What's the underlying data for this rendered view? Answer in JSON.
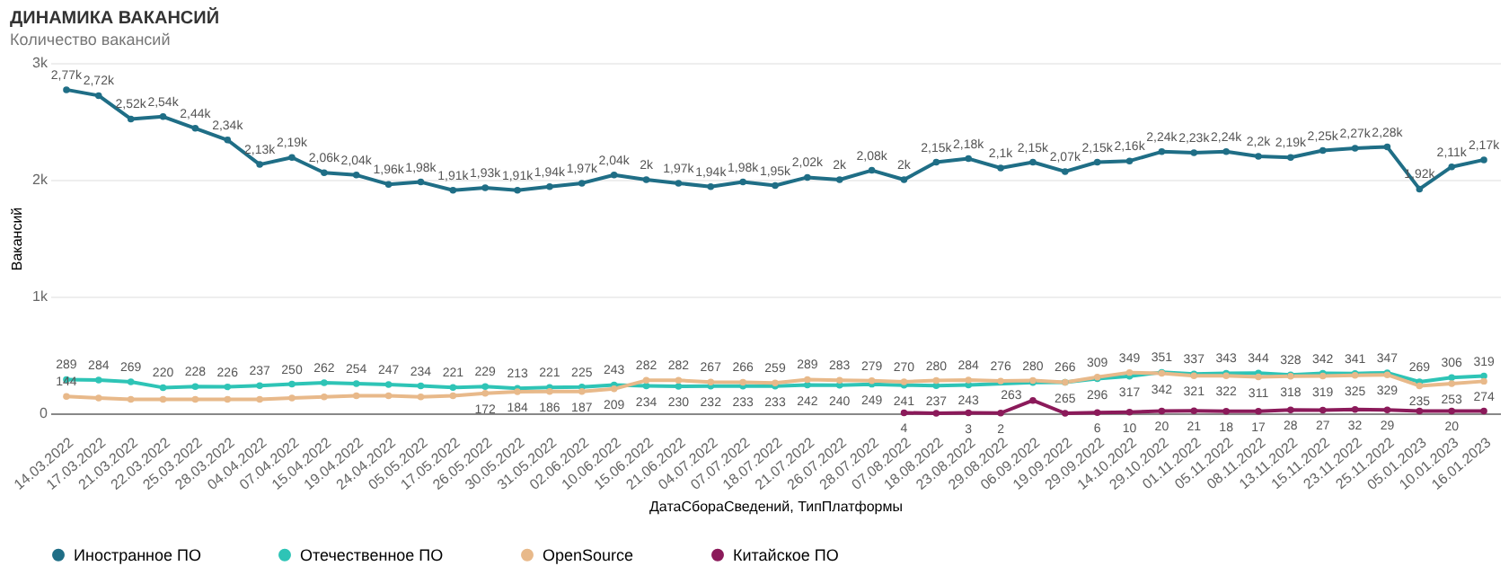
{
  "chart_data": {
    "type": "line",
    "title": "ДИНАМИКА ВАКАНСИЙ",
    "subtitle": "Количество вакансий",
    "xlabel": "ДатаСбораСведений, ТипПлатформы",
    "ylabel": "Вакансий",
    "categories": [
      "14.03.2022",
      "17.03.2022",
      "21.03.2022",
      "22.03.2022",
      "25.03.2022",
      "28.03.2022",
      "04.04.2022",
      "07.04.2022",
      "15.04.2022",
      "19.04.2022",
      "24.04.2022",
      "05.05.2022",
      "17.05.2022",
      "26.05.2022",
      "30.05.2022",
      "31.05.2022",
      "02.06.2022",
      "10.06.2022",
      "15.06.2022",
      "21.06.2022",
      "04.07.2022",
      "07.07.2022",
      "18.07.2022",
      "21.07.2022",
      "26.07.2022",
      "28.07.2022",
      "07.08.2022",
      "18.08.2022",
      "23.08.2022",
      "29.08.2022",
      "06.09.2022",
      "19.09.2022",
      "29.09.2022",
      "14.10.2022",
      "29.10.2022",
      "01.11.2022",
      "05.11.2022",
      "08.11.2022",
      "13.11.2022",
      "15.11.2022",
      "23.11.2022",
      "25.11.2022",
      "05.01.2023",
      "10.01.2023",
      "16.01.2023"
    ],
    "ylim": [
      0,
      3000
    ],
    "yticks": [
      {
        "value": 0,
        "label": "0"
      },
      {
        "value": 1000,
        "label": "1k"
      },
      {
        "value": 2000,
        "label": "2k"
      },
      {
        "value": 3000,
        "label": "3k"
      }
    ],
    "grid": "y",
    "legend": "bottom",
    "marker": "circle",
    "line_style": "solid",
    "series": [
      {
        "name": "Иностранное ПО",
        "color": "#1f6e86",
        "values": [
          2770,
          2720,
          2520,
          2540,
          2440,
          2340,
          2130,
          2190,
          2060,
          2040,
          1960,
          1980,
          1910,
          1930,
          1910,
          1940,
          1970,
          2040,
          2000,
          1970,
          1940,
          1980,
          1950,
          2020,
          2000,
          2080,
          2000,
          2150,
          2180,
          2100,
          2150,
          2070,
          2150,
          2160,
          2240,
          2230,
          2240,
          2200,
          2190,
          2250,
          2270,
          2280,
          1920,
          2110,
          2170
        ],
        "value_labels": [
          "2,77k",
          "2,72k",
          "2,52k",
          "2,54k",
          "2,44k",
          "2,34k",
          "2,13k",
          "2,19k",
          "2,06k",
          "2,04k",
          "1,96k",
          "1,98k",
          "1,91k",
          "1,93k",
          "1,91k",
          "1,94k",
          "1,97k",
          "2,04k",
          "2k",
          "1,97k",
          "1,94k",
          "1,98k",
          "1,95k",
          "2,02k",
          "2k",
          "2,08k",
          "2k",
          "2,15k",
          "2,18k",
          "2,1k",
          "2,15k",
          "2,07k",
          "2,15k",
          "2,16k",
          "2,24k",
          "2,23k",
          "2,24k",
          "2,2k",
          "2,19k",
          "2,25k",
          "2,27k",
          "2,28k",
          "1,92k",
          "2,11k",
          "2,17k"
        ]
      },
      {
        "name": "Отечественное ПО",
        "color": "#2ec4b6",
        "values": [
          289,
          284,
          269,
          220,
          228,
          226,
          237,
          250,
          262,
          254,
          247,
          234,
          221,
          229,
          213,
          221,
          225,
          243,
          234,
          230,
          232,
          233,
          233,
          242,
          240,
          249,
          241,
          237,
          243,
          null,
          263,
          265,
          296,
          317,
          351,
          337,
          343,
          344,
          328,
          342,
          341,
          347,
          269,
          306,
          319
        ],
        "value_labels": [
          "289",
          "284",
          "269",
          "220",
          "228",
          "226",
          "237",
          "250",
          "262",
          "254",
          "247",
          "234",
          "221",
          "229",
          "213",
          "221",
          "225",
          "243",
          "234",
          "230",
          "232",
          "233",
          "233",
          "242",
          "240",
          "249",
          "241",
          "237",
          "243",
          null,
          "263",
          "265",
          "296",
          "317",
          "351",
          "337",
          "343",
          "344",
          "328",
          "342",
          "341",
          "347",
          "269",
          "306",
          "319"
        ]
      },
      {
        "name": "OpenSource",
        "color": "#e8b98a",
        "values": [
          144,
          130,
          120,
          120,
          120,
          120,
          120,
          130,
          140,
          150,
          150,
          140,
          150,
          172,
          184,
          186,
          187,
          209,
          282,
          282,
          267,
          266,
          259,
          289,
          283,
          279,
          270,
          280,
          284,
          276,
          280,
          266,
          309,
          349,
          342,
          321,
          322,
          311,
          318,
          319,
          325,
          329,
          235,
          253,
          274
        ],
        "value_labels": [
          "144",
          null,
          null,
          null,
          null,
          null,
          null,
          null,
          null,
          null,
          null,
          null,
          null,
          "172",
          "184",
          "186",
          "187",
          "209",
          "282",
          "282",
          "267",
          "266",
          "259",
          "289",
          "283",
          "279",
          "270",
          "280",
          "284",
          "276",
          "280",
          "266",
          "309",
          "349",
          "342",
          "321",
          "322",
          "311",
          "318",
          "319",
          "325",
          "329",
          "235",
          "253",
          "274"
        ]
      },
      {
        "name": "Китайское ПО",
        "color": "#8b1a5a",
        "values": [
          null,
          null,
          null,
          null,
          null,
          null,
          null,
          null,
          null,
          null,
          null,
          null,
          null,
          null,
          null,
          null,
          null,
          null,
          null,
          null,
          null,
          null,
          null,
          null,
          null,
          null,
          4,
          0,
          3,
          2,
          110,
          0,
          6,
          10,
          20,
          21,
          18,
          17,
          28,
          27,
          32,
          29,
          20,
          20,
          20
        ],
        "value_labels": [
          null,
          null,
          null,
          null,
          null,
          null,
          null,
          null,
          null,
          null,
          null,
          null,
          null,
          null,
          null,
          null,
          null,
          null,
          null,
          null,
          null,
          null,
          null,
          null,
          null,
          null,
          "4",
          null,
          "3",
          "2",
          null,
          null,
          "6",
          "10",
          "20",
          "21",
          "18",
          "17",
          "28",
          "27",
          "32",
          "29",
          null,
          "20",
          null
        ]
      }
    ]
  }
}
